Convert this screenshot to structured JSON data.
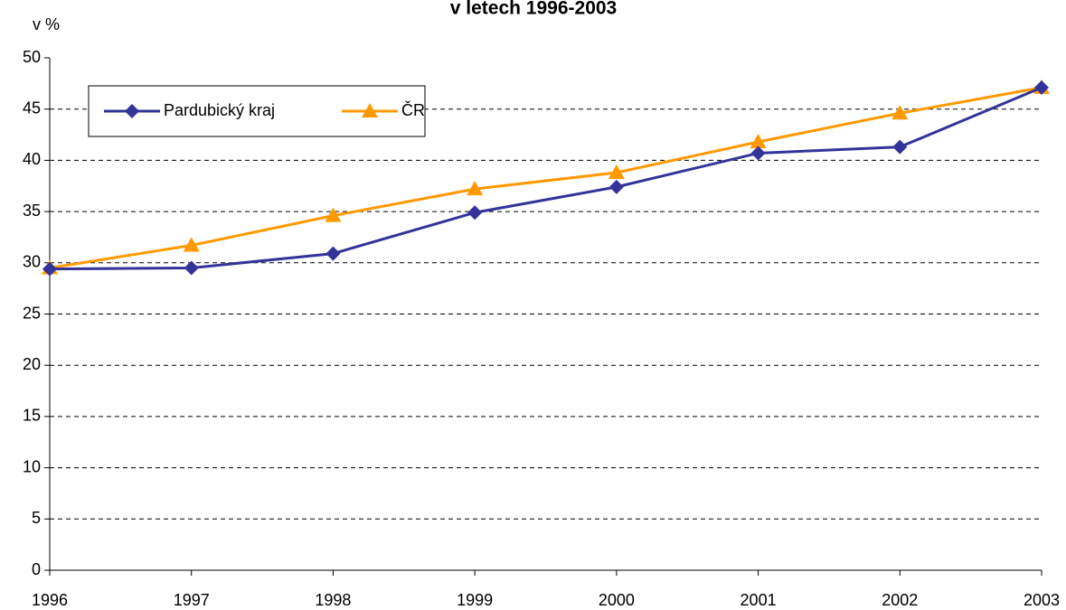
{
  "chart_data": {
    "type": "line",
    "title": "v letech 1996-2003",
    "y_label": "v %",
    "categories": [
      "1996",
      "1997",
      "1998",
      "1999",
      "2000",
      "2001",
      "2002",
      "2003"
    ],
    "series": [
      {
        "name": "Pardubický kraj",
        "color": "#333399",
        "marker": "diamond",
        "values": [
          29.4,
          29.5,
          30.9,
          34.9,
          37.4,
          40.7,
          41.3,
          47.1
        ]
      },
      {
        "name": "ČR",
        "color": "#ff9900",
        "marker": "triangle",
        "values": [
          29.5,
          31.7,
          34.6,
          37.2,
          38.8,
          41.8,
          44.6,
          47.1
        ]
      }
    ],
    "ylim": [
      0,
      50
    ],
    "yticks": [
      0,
      5,
      10,
      15,
      20,
      25,
      30,
      35,
      40,
      45,
      50
    ],
    "grid": true
  }
}
